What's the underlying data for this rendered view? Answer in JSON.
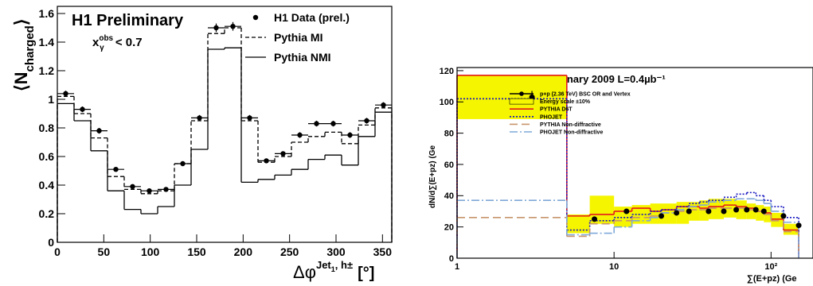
{
  "chart_data": [
    {
      "type": "histogram",
      "title": "H1 Preliminary",
      "annotation": {
        "base": "x",
        "sub": "γ",
        "sup": "obs",
        "rest": " < 0.7"
      },
      "ylabel": {
        "open": "⟨N",
        "sub": "charged",
        "close": "⟩"
      },
      "xlabel": {
        "base": "Δφ",
        "sup": "Jet",
        "sup_sub": "1",
        "sup_rest": ", h±",
        "unit": "[°]"
      },
      "bins": [
        0,
        18,
        36,
        54,
        72,
        90,
        108,
        126,
        144,
        162,
        180,
        198,
        216,
        234,
        252,
        270,
        288,
        306,
        324,
        342,
        360
      ],
      "xlim": [
        0,
        360
      ],
      "xticks": [
        0,
        50,
        100,
        150,
        200,
        250,
        300,
        350
      ],
      "ylim": [
        0,
        1.65
      ],
      "yticks": [
        0,
        0.2,
        0.4,
        0.6,
        0.8,
        1,
        1.2,
        1.4,
        1.6
      ],
      "series": [
        {
          "name": "H1 Data (prel.)",
          "color": "#000000",
          "style": "points",
          "values": [
            1.04,
            0.93,
            0.78,
            0.51,
            0.39,
            0.36,
            0.37,
            0.55,
            0.87,
            1.5,
            1.51,
            0.87,
            0.57,
            0.62,
            0.75,
            0.83,
            0.83,
            0.75,
            0.85,
            0.96
          ],
          "errors": [
            0.02,
            0.02,
            0.02,
            0.015,
            0.015,
            0.015,
            0.015,
            0.015,
            0.02,
            0.03,
            0.03,
            0.02,
            0.015,
            0.015,
            0.02,
            0.02,
            0.02,
            0.02,
            0.02,
            0.02
          ]
        },
        {
          "name": "Pythia MI",
          "color": "#000000",
          "style": "dashed",
          "values": [
            1.02,
            0.9,
            0.73,
            0.46,
            0.37,
            0.34,
            0.36,
            0.55,
            0.85,
            1.46,
            1.5,
            0.85,
            0.56,
            0.6,
            0.7,
            0.74,
            0.77,
            0.69,
            0.82,
            0.94
          ]
        },
        {
          "name": "Pythia NMI",
          "color": "#000000",
          "style": "solid",
          "values": [
            0.97,
            0.85,
            0.64,
            0.36,
            0.23,
            0.2,
            0.25,
            0.4,
            0.65,
            1.35,
            1.36,
            0.42,
            0.44,
            0.47,
            0.51,
            0.58,
            0.61,
            0.54,
            0.74,
            0.91
          ]
        }
      ]
    },
    {
      "type": "histogram",
      "title": "CMS Preliminary 2009  L=0.4µb⁻¹",
      "ylabel": "dN/d∑(E+pz) (Ge",
      "xlabel": "∑(E+pz) (Ge",
      "xscale": "log",
      "bins": [
        1,
        5,
        7,
        10,
        13,
        17,
        20,
        25,
        30,
        35,
        40,
        50,
        60,
        70,
        80,
        90,
        100,
        120,
        150,
        180
      ],
      "xlim": [
        1,
        185
      ],
      "xticks": [
        1,
        10,
        {
          "value": 100,
          "label": "10²"
        }
      ],
      "ylim": [
        0,
        122
      ],
      "yticks": [
        0,
        20,
        40,
        60,
        80,
        100,
        120
      ],
      "series": [
        {
          "name": "p+p (2.36 TeV) BSC OR and Vertex",
          "color": "#000000",
          "style": "points",
          "x": [
            3,
            7.5,
            12,
            20,
            25,
            30,
            40,
            50,
            60,
            70,
            80,
            90,
            120,
            150
          ],
          "values": [
            103,
            25,
            30,
            27,
            29,
            30,
            30,
            30,
            31,
            31,
            31,
            30,
            27,
            21
          ],
          "errors": [
            4,
            1,
            1,
            1,
            1,
            1,
            1,
            1,
            1,
            1,
            1,
            1,
            1,
            1
          ]
        },
        {
          "name": "PYTHIA D6T",
          "color": "#e31a1c",
          "style": "solid",
          "values": [
            117,
            27,
            28,
            30,
            32,
            30,
            31,
            33,
            33,
            32,
            33,
            34,
            33,
            32,
            30,
            29,
            25,
            18
          ]
        },
        {
          "name": "PHOJET",
          "color": "#1515c0",
          "style": "dotted",
          "values": [
            102,
            18,
            24,
            26,
            28,
            30,
            31,
            33,
            35,
            36,
            37,
            39,
            41,
            42,
            40,
            37,
            33,
            26
          ]
        },
        {
          "name": "PYTHIA Non-diffractive",
          "color": "#c8956c",
          "style": "longdash",
          "values": [
            26,
            14,
            22,
            24,
            26,
            27,
            29,
            30,
            31,
            31,
            32,
            32,
            32,
            31,
            30,
            28,
            24,
            17
          ]
        },
        {
          "name": "PHOJET Non-diffractive",
          "color": "#7fa8d8",
          "style": "dashdot",
          "values": [
            37,
            15,
            16,
            20,
            24,
            26,
            29,
            31,
            33,
            34,
            36,
            37,
            38,
            38,
            37,
            35,
            30,
            23
          ]
        }
      ],
      "band": {
        "name": "Energy scale ±10%",
        "color": "#f5f500",
        "low": [
          89,
          16,
          22,
          20,
          22,
          22,
          22,
          22,
          24,
          24,
          25,
          26,
          25,
          25,
          24,
          23,
          20,
          15
        ],
        "high": [
          117,
          28,
          40,
          33,
          34,
          35,
          35,
          36,
          36,
          37,
          38,
          38,
          37,
          35,
          34,
          33,
          29,
          22
        ]
      }
    }
  ]
}
